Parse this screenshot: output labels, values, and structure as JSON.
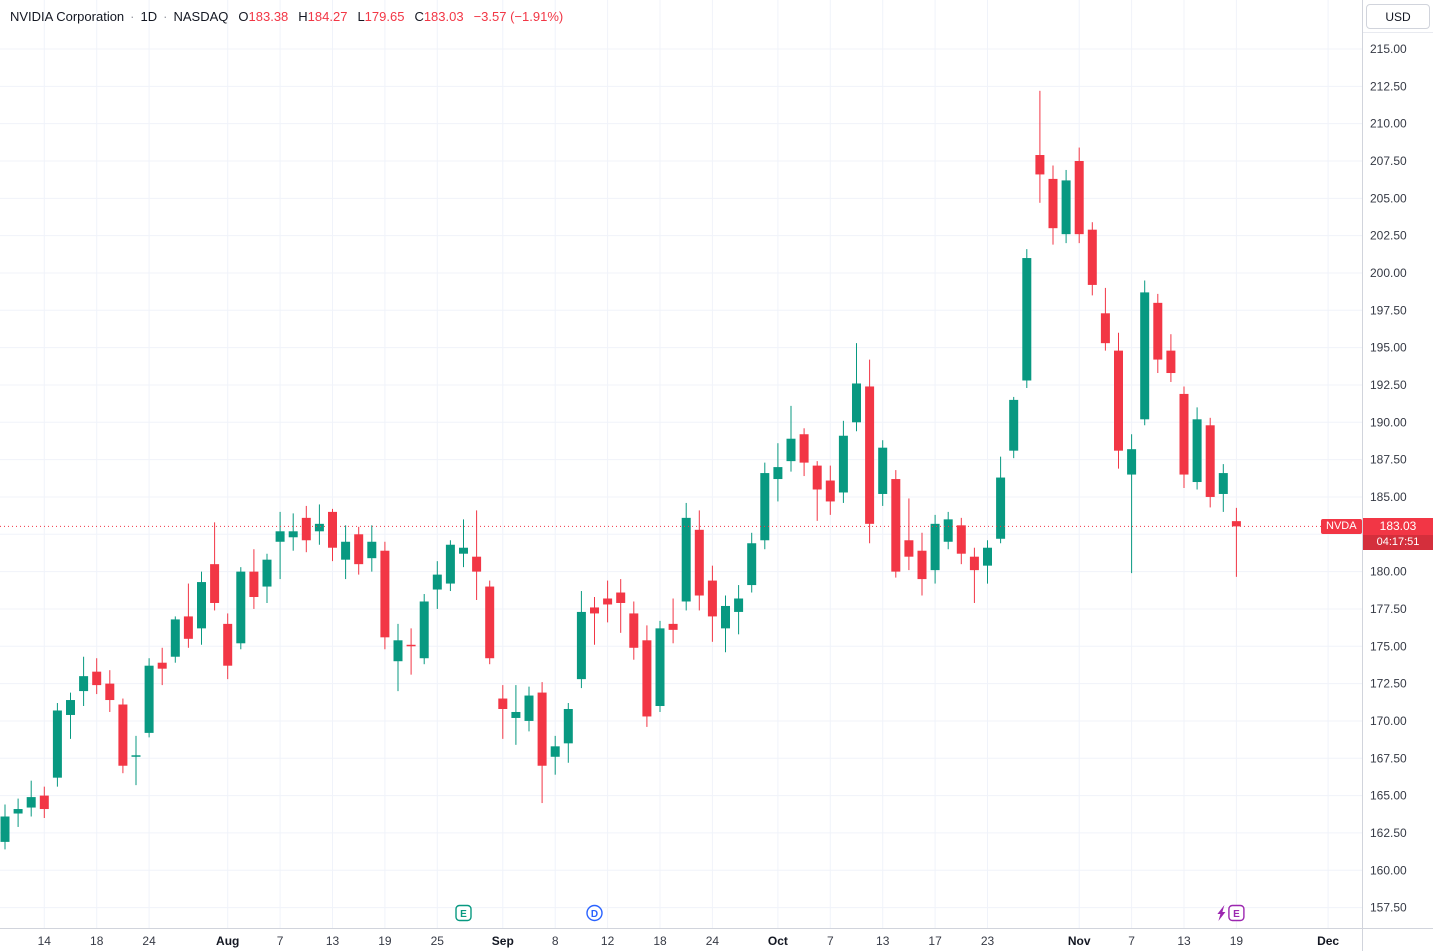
{
  "header": {
    "title": "NVIDIA Corporation",
    "separator": "·",
    "interval": "1D",
    "exchange": "NASDAQ",
    "open_label": "O",
    "open": "183.38",
    "high_label": "H",
    "high": "184.27",
    "low_label": "L",
    "low": "179.65",
    "close_label": "C",
    "close": "183.03",
    "change": "−3.57 (−1.91%)"
  },
  "price_axis": {
    "currency": "USD",
    "symbol_tag": "NVDA",
    "current_price": "183.03",
    "countdown": "04:17:51"
  },
  "time_axis": {
    "ticks": [
      {
        "label": "14",
        "index": 3,
        "major": false
      },
      {
        "label": "18",
        "index": 7,
        "major": false
      },
      {
        "label": "24",
        "index": 11,
        "major": false
      },
      {
        "label": "Aug",
        "index": 17,
        "major": true
      },
      {
        "label": "7",
        "index": 21,
        "major": false
      },
      {
        "label": "13",
        "index": 25,
        "major": false
      },
      {
        "label": "19",
        "index": 29,
        "major": false
      },
      {
        "label": "25",
        "index": 33,
        "major": false
      },
      {
        "label": "Sep",
        "index": 38,
        "major": true
      },
      {
        "label": "8",
        "index": 42,
        "major": false
      },
      {
        "label": "12",
        "index": 46,
        "major": false
      },
      {
        "label": "18",
        "index": 50,
        "major": false
      },
      {
        "label": "24",
        "index": 54,
        "major": false
      },
      {
        "label": "Oct",
        "index": 59,
        "major": true
      },
      {
        "label": "7",
        "index": 63,
        "major": false
      },
      {
        "label": "13",
        "index": 67,
        "major": false
      },
      {
        "label": "17",
        "index": 71,
        "major": false
      },
      {
        "label": "23",
        "index": 75,
        "major": false
      },
      {
        "label": "Nov",
        "index": 82,
        "major": true
      },
      {
        "label": "7",
        "index": 86,
        "major": false
      },
      {
        "label": "13",
        "index": 90,
        "major": false
      },
      {
        "label": "19",
        "index": 94,
        "major": false
      },
      {
        "label": "Dec",
        "index": 101,
        "major": true
      }
    ]
  },
  "markers": [
    {
      "kind": "earnings-past",
      "glyph": "E",
      "index": 35,
      "color": "#089981",
      "shape": "square",
      "bolt": false
    },
    {
      "kind": "dividend",
      "glyph": "D",
      "index": 45,
      "color": "#2962FF",
      "shape": "circle",
      "bolt": false
    },
    {
      "kind": "earnings-upcoming",
      "glyph": "E",
      "index": 94,
      "color": "#9C27B0",
      "shape": "square",
      "bolt": true
    }
  ],
  "chart_data": {
    "type": "candlestick",
    "title": "NVIDIA Corporation",
    "symbol": "NVDA",
    "interval": "1D",
    "exchange": "NASDAQ",
    "currency": "USD",
    "legend_ohlc": {
      "open": 183.38,
      "high": 184.27,
      "low": 179.65,
      "close": 183.03,
      "change": -3.57,
      "change_pct": -1.91
    },
    "current_price": 183.03,
    "colors": {
      "up": "#089981",
      "down": "#F23645",
      "grid": "#F0F3FA",
      "axis_text": "#363A45",
      "border": "#D1D4DC"
    },
    "y_axis": {
      "min": 157.5,
      "max": 215.0,
      "step": 2.5
    },
    "grid": true,
    "columns": [
      "date",
      "open",
      "high",
      "low",
      "close"
    ],
    "candles": [
      [
        "Jul 9",
        161.9,
        164.4,
        161.4,
        163.6
      ],
      [
        "Jul 10",
        163.8,
        164.8,
        162.9,
        164.1
      ],
      [
        "Jul 11",
        164.2,
        166.0,
        163.6,
        164.9
      ],
      [
        "Jul 14",
        165.0,
        165.6,
        163.5,
        164.1
      ],
      [
        "Jul 15",
        166.2,
        171.2,
        165.6,
        170.7
      ],
      [
        "Jul 16",
        170.4,
        171.9,
        168.8,
        171.4
      ],
      [
        "Jul 17",
        172.0,
        174.3,
        171.0,
        173.0
      ],
      [
        "Jul 18",
        173.3,
        174.2,
        171.8,
        172.4
      ],
      [
        "Jul 21",
        172.5,
        173.4,
        170.6,
        171.4
      ],
      [
        "Jul 22",
        171.1,
        171.5,
        166.5,
        167.0
      ],
      [
        "Jul 23",
        167.6,
        169.0,
        165.7,
        167.7
      ],
      [
        "Jul 24",
        169.2,
        174.2,
        168.9,
        173.7
      ],
      [
        "Jul 25",
        173.9,
        174.9,
        172.4,
        173.5
      ],
      [
        "Jul 28",
        174.3,
        177.0,
        173.9,
        176.8
      ],
      [
        "Jul 29",
        177.0,
        179.2,
        174.9,
        175.5
      ],
      [
        "Jul 30",
        176.2,
        180.0,
        175.1,
        179.3
      ],
      [
        "Jul 31",
        180.5,
        183.3,
        177.4,
        177.9
      ],
      [
        "Aug 1",
        176.5,
        177.2,
        172.8,
        173.7
      ],
      [
        "Aug 4",
        175.2,
        180.3,
        174.8,
        180.0
      ],
      [
        "Aug 5",
        180.0,
        181.5,
        177.5,
        178.3
      ],
      [
        "Aug 6",
        179.0,
        181.2,
        177.9,
        180.8
      ],
      [
        "Aug 7",
        182.0,
        184.0,
        179.5,
        182.7
      ],
      [
        "Aug 8",
        182.3,
        183.9,
        181.4,
        182.7
      ],
      [
        "Aug 11",
        183.6,
        184.4,
        181.3,
        182.1
      ],
      [
        "Aug 12",
        182.7,
        184.5,
        181.8,
        183.2
      ],
      [
        "Aug 13",
        184.0,
        184.2,
        180.7,
        181.6
      ],
      [
        "Aug 14",
        180.8,
        183.1,
        179.5,
        182.0
      ],
      [
        "Aug 15",
        182.5,
        183.0,
        179.8,
        180.5
      ],
      [
        "Aug 18",
        180.9,
        183.1,
        180.0,
        182.0
      ],
      [
        "Aug 19",
        181.4,
        182.0,
        174.8,
        175.6
      ],
      [
        "Aug 20",
        174.0,
        176.5,
        172.0,
        175.4
      ],
      [
        "Aug 21",
        175.1,
        176.2,
        173.1,
        175.0
      ],
      [
        "Aug 22",
        174.2,
        178.5,
        173.8,
        178.0
      ],
      [
        "Aug 25",
        178.8,
        180.7,
        177.5,
        179.8
      ],
      [
        "Aug 26",
        179.2,
        182.1,
        178.7,
        181.8
      ],
      [
        "Aug 27",
        181.2,
        183.5,
        180.3,
        181.6
      ],
      [
        "Aug 28",
        181.0,
        184.1,
        178.1,
        180.0
      ],
      [
        "Aug 29",
        179.0,
        179.4,
        173.8,
        174.2
      ],
      [
        "Sep 2",
        171.5,
        172.4,
        168.8,
        170.8
      ],
      [
        "Sep 3",
        170.2,
        172.4,
        168.4,
        170.6
      ],
      [
        "Sep 4",
        170.0,
        172.3,
        169.3,
        171.7
      ],
      [
        "Sep 5",
        171.9,
        172.6,
        164.5,
        167.0
      ],
      [
        "Sep 8",
        167.6,
        169.0,
        166.4,
        168.3
      ],
      [
        "Sep 9",
        168.5,
        171.2,
        167.2,
        170.8
      ],
      [
        "Sep 10",
        172.8,
        178.7,
        172.2,
        177.3
      ],
      [
        "Sep 11",
        177.6,
        178.3,
        175.1,
        177.2
      ],
      [
        "Sep 12",
        178.2,
        179.4,
        176.6,
        177.8
      ],
      [
        "Sep 15",
        178.6,
        179.5,
        175.9,
        177.9
      ],
      [
        "Sep 16",
        177.2,
        178.0,
        174.1,
        174.9
      ],
      [
        "Sep 17",
        175.4,
        176.4,
        169.6,
        170.3
      ],
      [
        "Sep 18",
        171.0,
        176.7,
        170.6,
        176.2
      ],
      [
        "Sep 19",
        176.5,
        178.2,
        175.2,
        176.1
      ],
      [
        "Sep 22",
        178.0,
        184.6,
        177.4,
        183.6
      ],
      [
        "Sep 23",
        182.8,
        184.1,
        177.4,
        178.4
      ],
      [
        "Sep 24",
        179.4,
        180.4,
        175.3,
        177.0
      ],
      [
        "Sep 25",
        176.2,
        178.4,
        174.6,
        177.7
      ],
      [
        "Sep 26",
        177.3,
        179.1,
        175.8,
        178.2
      ],
      [
        "Sep 29",
        179.1,
        182.6,
        178.6,
        181.9
      ],
      [
        "Sep 30",
        182.1,
        187.3,
        181.5,
        186.6
      ],
      [
        "Oct 1",
        186.2,
        188.6,
        184.7,
        187.0
      ],
      [
        "Oct 2",
        187.4,
        191.1,
        186.7,
        188.9
      ],
      [
        "Oct 3",
        189.2,
        189.6,
        186.4,
        187.3
      ],
      [
        "Oct 6",
        187.1,
        187.4,
        183.4,
        185.5
      ],
      [
        "Oct 7",
        186.1,
        187.1,
        183.8,
        184.7
      ],
      [
        "Oct 8",
        185.3,
        190.1,
        184.6,
        189.1
      ],
      [
        "Oct 9",
        190.0,
        195.3,
        189.4,
        192.6
      ],
      [
        "Oct 10",
        192.4,
        194.2,
        181.9,
        183.2
      ],
      [
        "Oct 13",
        185.2,
        188.8,
        184.4,
        188.3
      ],
      [
        "Oct 14",
        186.2,
        186.8,
        179.6,
        180.0
      ],
      [
        "Oct 15",
        182.1,
        184.9,
        180.1,
        181.0
      ],
      [
        "Oct 16",
        181.4,
        182.6,
        178.4,
        179.5
      ],
      [
        "Oct 17",
        180.1,
        183.8,
        179.2,
        183.2
      ],
      [
        "Oct 20",
        182.0,
        184.0,
        181.5,
        183.5
      ],
      [
        "Oct 21",
        183.1,
        183.6,
        180.5,
        181.2
      ],
      [
        "Oct 22",
        181.0,
        181.6,
        177.9,
        180.1
      ],
      [
        "Oct 23",
        180.4,
        182.1,
        179.2,
        181.6
      ],
      [
        "Oct 24",
        182.2,
        187.7,
        181.9,
        186.3
      ],
      [
        "Oct 27",
        188.1,
        191.7,
        187.6,
        191.5
      ],
      [
        "Oct 28",
        192.8,
        201.6,
        192.3,
        201.0
      ],
      [
        "Oct 29",
        207.9,
        212.2,
        204.7,
        206.6
      ],
      [
        "Oct 30",
        206.3,
        207.2,
        201.9,
        203.0
      ],
      [
        "Oct 31",
        202.6,
        206.9,
        202.0,
        206.2
      ],
      [
        "Nov 3",
        207.5,
        208.4,
        202.0,
        202.6
      ],
      [
        "Nov 4",
        202.9,
        203.4,
        198.5,
        199.2
      ],
      [
        "Nov 5",
        197.3,
        199.0,
        194.8,
        195.3
      ],
      [
        "Nov 6",
        194.8,
        196.0,
        186.9,
        188.1
      ],
      [
        "Nov 7",
        186.5,
        189.2,
        179.9,
        188.2
      ],
      [
        "Nov 10",
        190.2,
        199.5,
        189.8,
        198.7
      ],
      [
        "Nov 11",
        198.0,
        198.6,
        193.3,
        194.2
      ],
      [
        "Nov 12",
        194.8,
        195.9,
        192.7,
        193.3
      ],
      [
        "Nov 13",
        191.9,
        192.4,
        185.6,
        186.5
      ],
      [
        "Nov 14",
        186.0,
        191.0,
        185.5,
        190.2
      ],
      [
        "Nov 17",
        189.8,
        190.3,
        184.3,
        185.0
      ],
      [
        "Nov 18",
        185.2,
        187.2,
        184.0,
        186.6
      ],
      [
        "Nov 19",
        183.38,
        184.27,
        179.65,
        183.03
      ]
    ]
  }
}
